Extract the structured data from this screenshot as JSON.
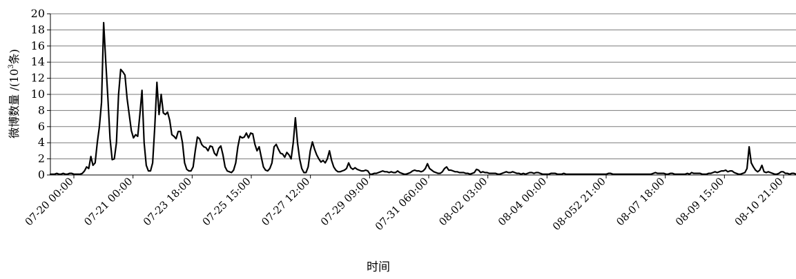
{
  "chart_data": {
    "type": "line",
    "ylabel_main": "微博数量 /(10",
    "ylabel_sup": "3",
    "ylabel_tail": "条)",
    "xlabel": "时间",
    "ylim": [
      0,
      20
    ],
    "yticks": [
      0,
      2,
      4,
      6,
      8,
      10,
      12,
      14,
      16,
      18,
      20
    ],
    "grid": "horizontal",
    "x_tick_labels": [
      "07-20 00:00",
      "07-21 00:00",
      "07-23 18:00",
      "07-25 15:00",
      "07-27 12:00",
      "07-29 09:00",
      "07-31 060:00",
      "08-02 03:00",
      "08-04 00:00",
      "08-052 21:00",
      "08-07 18:00",
      "08-09 15:00",
      "08-10 21:00"
    ],
    "series": [
      {
        "values": [
          0.1,
          0.1,
          0.1,
          0.2,
          0.1,
          0.1,
          0.2,
          0.1,
          0.1,
          0.2,
          0.2,
          0.1,
          0.1,
          0.1,
          0.1,
          0.2,
          0.5,
          1,
          0.8,
          2.3,
          1.2,
          1.5,
          4,
          6,
          9,
          18.9,
          14,
          9.5,
          4.5,
          1.9,
          2,
          4,
          10,
          13.1,
          12.8,
          12.4,
          9.5,
          7.5,
          5.5,
          4.6,
          5,
          4.8,
          7.5,
          10.5,
          4,
          1.2,
          0.5,
          0.5,
          1.5,
          6,
          11.5,
          7.5,
          10,
          7.7,
          7.5,
          7.8,
          6.8,
          5,
          4.8,
          4.5,
          5.4,
          5.4,
          4,
          1.5,
          0.7,
          0.5,
          0.5,
          1,
          3,
          4.7,
          4.5,
          3.8,
          3.5,
          3.4,
          3,
          3.6,
          3.5,
          2.7,
          2.4,
          3.3,
          3.6,
          2.5,
          1,
          0.5,
          0.4,
          0.3,
          0.6,
          1.5,
          3.5,
          4.8,
          4.6,
          4.7,
          5.2,
          4.6,
          5.2,
          5.1,
          3.8,
          3,
          3.5,
          2.2,
          1,
          0.6,
          0.5,
          0.8,
          1.5,
          3.5,
          3.8,
          3.2,
          2.7,
          2.6,
          2.2,
          2.8,
          2.5,
          2,
          4,
          7.1,
          4,
          2,
          0.8,
          0.3,
          0.3,
          1,
          3,
          4.1,
          3.2,
          2.5,
          2,
          1.6,
          1.8,
          1.5,
          2,
          3,
          1.8,
          1,
          0.6,
          0.4,
          0.4,
          0.5,
          0.6,
          0.8,
          1.5,
          0.9,
          0.7,
          0.9,
          0.7,
          0.6,
          0.5,
          0.5,
          0.6,
          0.5,
          0.1,
          0.1,
          0.2,
          0.2,
          0.3,
          0.4,
          0.5,
          0.4,
          0.4,
          0.3,
          0.4,
          0.3,
          0.3,
          0.5,
          0.3,
          0.2,
          0.1,
          0.1,
          0.2,
          0.3,
          0.5,
          0.6,
          0.5,
          0.5,
          0.4,
          0.5,
          0.8,
          1.4,
          0.8,
          0.6,
          0.4,
          0.3,
          0.2,
          0.2,
          0.4,
          0.8,
          1,
          0.6,
          0.6,
          0.5,
          0.4,
          0.4,
          0.3,
          0.3,
          0.3,
          0.2,
          0.2,
          0.1,
          0.2,
          0.3,
          0.7,
          0.6,
          0.3,
          0.4,
          0.3,
          0.3,
          0.2,
          0.2,
          0.2,
          0.2,
          0.1,
          0.1,
          0.2,
          0.3,
          0.4,
          0.3,
          0.3,
          0.4,
          0.3,
          0.2,
          0.2,
          0.1,
          0.2,
          0.1,
          0.2,
          0.3,
          0.3,
          0.2,
          0.3,
          0.3,
          0.2,
          0.1,
          0.1,
          0.1,
          0.1,
          0.2,
          0.2,
          0.2,
          0.1,
          0.1,
          0.1,
          0.2,
          0.1,
          0.1,
          0.1,
          0.1,
          0.1,
          0.1,
          0.1,
          0.1,
          0.1,
          0.1,
          0.1,
          0.1,
          0.1,
          0.1,
          0.1,
          0.1,
          0.1,
          0.1,
          0.1,
          0.1,
          0.2,
          0.2,
          0.1,
          0.1,
          0.1,
          0.1,
          0.1,
          0.1,
          0.1,
          0.1,
          0.1,
          0.1,
          0.1,
          0.1,
          0.1,
          0.1,
          0.1,
          0.1,
          0.1,
          0.1,
          0.1,
          0.2,
          0.3,
          0.2,
          0.2,
          0.2,
          0.2,
          0.1,
          0.1,
          0.2,
          0.2,
          0.1,
          0.1,
          0.1,
          0.1,
          0.1,
          0.1,
          0.2,
          0.1,
          0.3,
          0.2,
          0.2,
          0.2,
          0.2,
          0.1,
          0.1,
          0.1,
          0.2,
          0.2,
          0.3,
          0.4,
          0.3,
          0.4,
          0.5,
          0.5,
          0.6,
          0.4,
          0.5,
          0.5,
          0.3,
          0.2,
          0.1,
          0.1,
          0.2,
          0.3,
          0.8,
          3.5,
          1.5,
          1,
          0.6,
          0.4,
          0.6,
          1.2,
          0.4,
          0.3,
          0.4,
          0.3,
          0.2,
          0.1,
          0.1,
          0.2,
          0.4,
          0.4,
          0.2,
          0.2,
          0.1,
          0.2,
          0.2,
          0.1
        ]
      }
    ]
  }
}
